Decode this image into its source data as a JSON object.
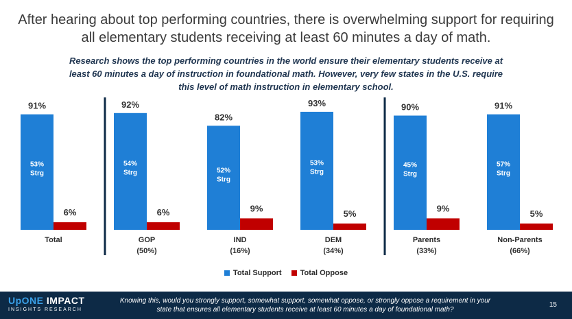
{
  "title": "After hearing about top performing countries, there is overwhelming support for requiring all elementary students receiving at least 60 minutes a day of math.",
  "subtitle": "Research shows the top performing countries in the world ensure their elementary students receive at least 60 minutes a day of instruction in foundational math. However, very few states in the U.S. require this level of math instruction in elementary school.",
  "footer": {
    "logo_main_a": "UpONE",
    "logo_main_b": " IMPACT",
    "logo_sub": "INSIGHTS RESEARCH",
    "question": "Knowing this, would you strongly support, somewhat support, somewhat oppose, or strongly oppose a requirement in your state that ensures all elementary students receive at least 60 minutes a day of foundational math?",
    "page_number": "15"
  },
  "chart_data": {
    "type": "bar",
    "categories": [
      "Total",
      "GOP",
      "IND",
      "DEM",
      "Parents",
      "Non-Parents"
    ],
    "category_sublabels": [
      "",
      "(50%)",
      "(16%)",
      "(34%)",
      "(33%)",
      "(66%)"
    ],
    "series": [
      {
        "name": "Total Support",
        "color": "#1f7fd6",
        "values": [
          91,
          92,
          82,
          93,
          90,
          91
        ],
        "labels": [
          "91%",
          "92%",
          "82%",
          "93%",
          "90%",
          "91%"
        ]
      },
      {
        "name": "Total Oppose",
        "color": "#c00000",
        "values": [
          6,
          6,
          9,
          5,
          9,
          5
        ],
        "labels": [
          "6%",
          "6%",
          "9%",
          "5%",
          "9%",
          "5%"
        ]
      }
    ],
    "strong_support_labels": [
      "53%",
      "54%",
      "52%",
      "53%",
      "45%",
      "57%"
    ],
    "strong_suffix": "Strg",
    "ylim": [
      0,
      100
    ],
    "legend_position": "bottom",
    "divider_color": "#0d2a46"
  }
}
